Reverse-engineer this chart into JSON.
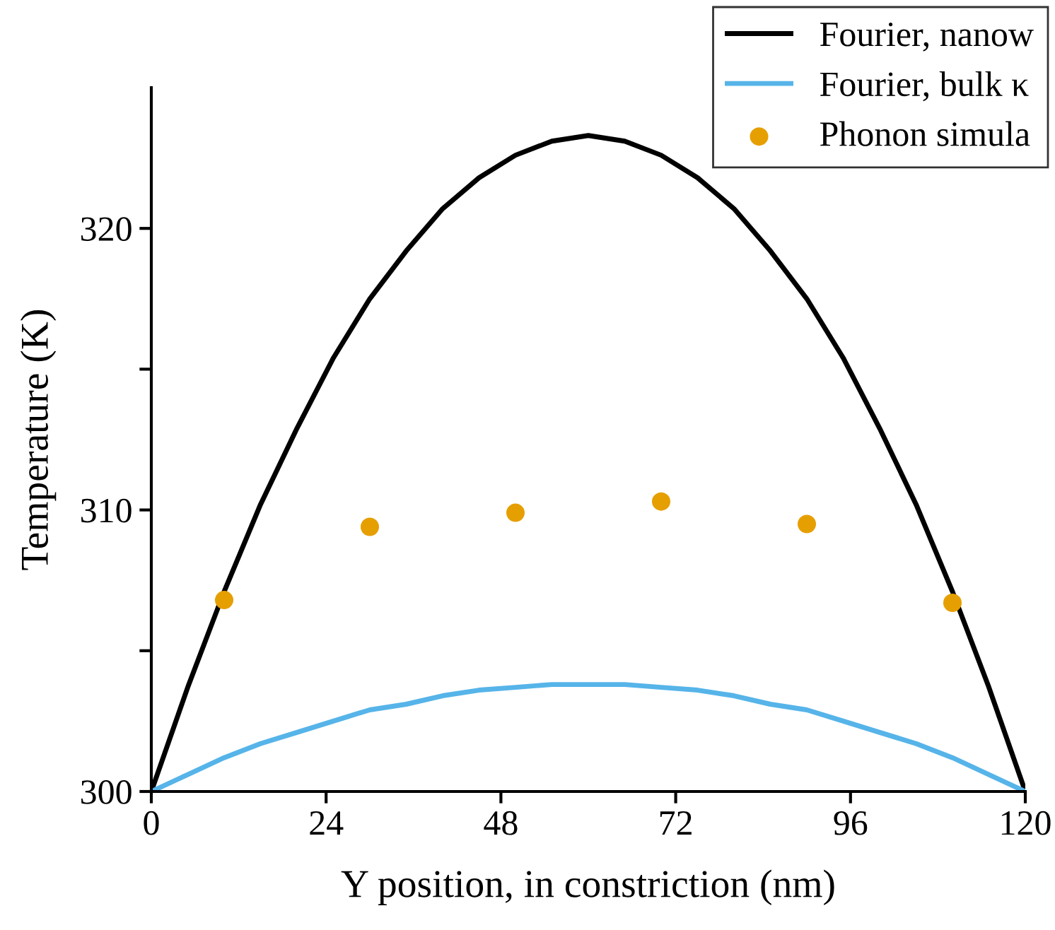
{
  "chart_data": {
    "type": "line",
    "xlabel": "Y position, in constriction (nm)",
    "ylabel": "Temperature (K)",
    "xlim": [
      0,
      120
    ],
    "xticks": [
      0,
      24,
      48,
      72,
      96,
      120
    ],
    "ylim": [
      300,
      325
    ],
    "yticks": [
      300,
      {
        "value": 305,
        "label": null
      },
      310,
      {
        "value": 315,
        "label": null
      },
      320
    ],
    "grid": false,
    "legend": "top right",
    "series": [
      {
        "name": "Fourier, nanow",
        "color": "#000000",
        "marker": "none",
        "line_style": "solid",
        "x": [
          0,
          5,
          10,
          15,
          20,
          25,
          30,
          35,
          40,
          45,
          50,
          55,
          60,
          65,
          70,
          75,
          80,
          85,
          90,
          95,
          100,
          105,
          110,
          115,
          120
        ],
        "values": [
          300,
          303.7,
          307.1,
          310.2,
          312.9,
          315.4,
          317.5,
          319.2,
          320.7,
          321.8,
          322.6,
          323.1,
          323.3,
          323.1,
          322.6,
          321.8,
          320.7,
          319.2,
          317.5,
          315.4,
          312.9,
          310.2,
          307.1,
          303.7,
          300
        ]
      },
      {
        "name": "Fourier, bulk κ",
        "color": "#56b4e9",
        "marker": "none",
        "line_style": "solid",
        "x": [
          0,
          5,
          10,
          15,
          20,
          25,
          30,
          35,
          40,
          45,
          50,
          55,
          60,
          65,
          70,
          75,
          80,
          85,
          90,
          95,
          100,
          105,
          110,
          115,
          120
        ],
        "values": [
          300,
          300.6,
          301.2,
          301.7,
          302.1,
          302.5,
          302.9,
          303.1,
          303.4,
          303.6,
          303.7,
          303.8,
          303.8,
          303.8,
          303.7,
          303.6,
          303.4,
          303.1,
          302.9,
          302.5,
          302.1,
          301.7,
          301.2,
          300.6,
          300
        ]
      },
      {
        "name": "Phonon simula",
        "color": "#e69f00",
        "type": "scatter",
        "marker": "circle",
        "x": [
          10,
          30,
          50,
          70,
          90,
          110
        ],
        "values": [
          306.8,
          309.4,
          309.9,
          310.3,
          309.5,
          306.7
        ]
      }
    ]
  }
}
